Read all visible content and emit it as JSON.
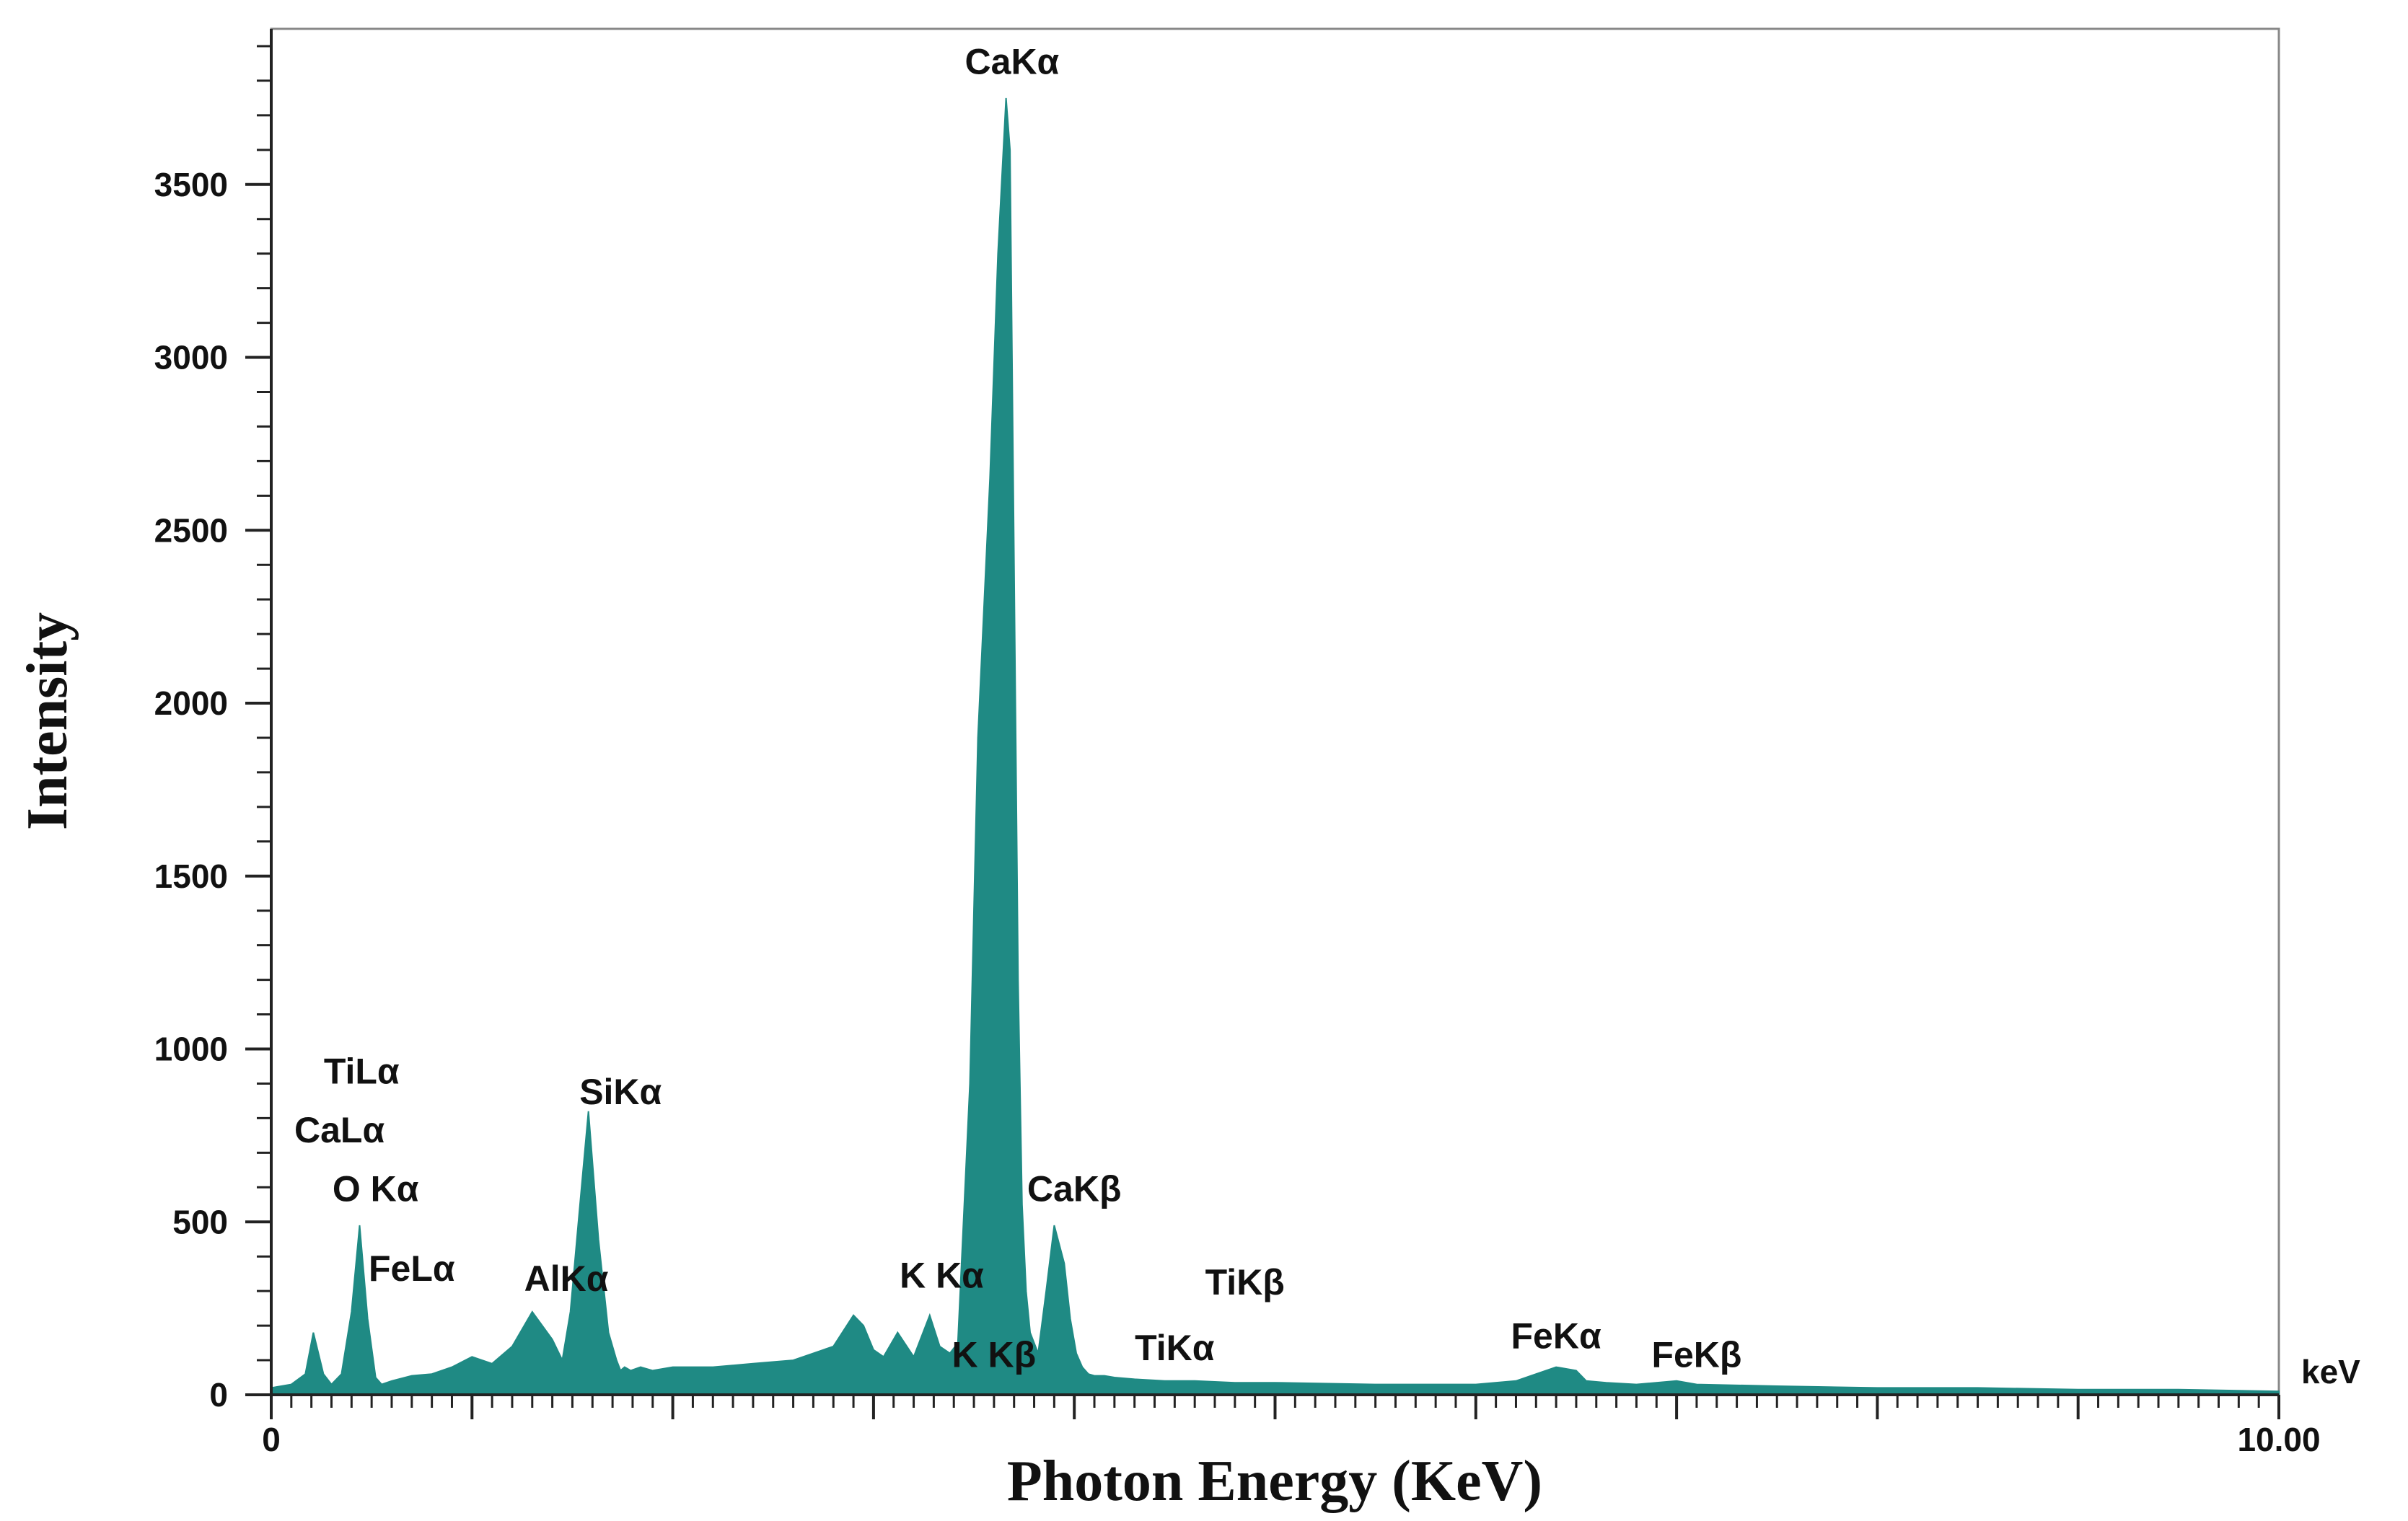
{
  "chart_data": {
    "type": "area",
    "title": "",
    "xlabel": "Photon Energy (KeV)",
    "ylabel": "Intensity",
    "x_unit": "keV",
    "xlim": [
      0,
      10.0
    ],
    "ylim": [
      0,
      3950
    ],
    "x_tick_labels": [
      "0",
      "10.00"
    ],
    "y_ticks": [
      0,
      500,
      1000,
      1500,
      2000,
      2500,
      3000,
      3500
    ],
    "y_tick_labels": [
      "0",
      "500",
      "1000",
      "1500",
      "2000",
      "2500",
      "3000",
      "3500"
    ],
    "grid": false,
    "legend": "none",
    "color": "#1f8a84",
    "series": [
      {
        "x": [
          0.0,
          0.1,
          0.17,
          0.21,
          0.26,
          0.3,
          0.35,
          0.4,
          0.44,
          0.48,
          0.52,
          0.55,
          0.6,
          0.7,
          0.8,
          0.9,
          1.0,
          1.1,
          1.2,
          1.3,
          1.4,
          1.45,
          1.49,
          1.53,
          1.58,
          1.63,
          1.68,
          1.72,
          1.74,
          1.76,
          1.79,
          1.84,
          1.9,
          2.0,
          2.2,
          2.4,
          2.6,
          2.8,
          2.9,
          2.95,
          3.0,
          3.05,
          3.12,
          3.2,
          3.28,
          3.33,
          3.38,
          3.42,
          3.48,
          3.52,
          3.58,
          3.62,
          3.66,
          3.68,
          3.7,
          3.72,
          3.74,
          3.76,
          3.78,
          3.82,
          3.86,
          3.9,
          3.95,
          3.98,
          4.01,
          4.04,
          4.07,
          4.1,
          4.15,
          4.2,
          4.3,
          4.45,
          4.6,
          4.8,
          5.0,
          5.5,
          6.0,
          6.2,
          6.4,
          6.5,
          6.55,
          6.65,
          6.8,
          7.0,
          7.1,
          7.5,
          8.0,
          8.5,
          9.0,
          9.5,
          10.0
        ],
        "y": [
          20,
          30,
          60,
          180,
          60,
          30,
          60,
          240,
          490,
          220,
          50,
          30,
          40,
          55,
          60,
          80,
          110,
          90,
          140,
          240,
          160,
          100,
          240,
          500,
          820,
          450,
          180,
          100,
          70,
          80,
          70,
          80,
          70,
          80,
          80,
          90,
          100,
          140,
          230,
          200,
          130,
          110,
          180,
          110,
          230,
          140,
          120,
          150,
          900,
          1900,
          2650,
          3300,
          3750,
          3600,
          2400,
          1200,
          550,
          300,
          180,
          120,
          300,
          490,
          380,
          220,
          120,
          80,
          60,
          55,
          55,
          50,
          45,
          40,
          40,
          35,
          35,
          30,
          30,
          40,
          80,
          70,
          40,
          35,
          30,
          40,
          30,
          25,
          20,
          20,
          15,
          15,
          10
        ]
      }
    ],
    "annotations": [
      {
        "text": "CaKα",
        "x": 3.69,
        "y": 3820
      },
      {
        "text": "TiLα",
        "x": 0.45,
        "y": 900
      },
      {
        "text": "CaLα",
        "x": 0.34,
        "y": 730
      },
      {
        "text": "O Kα",
        "x": 0.52,
        "y": 560
      },
      {
        "text": "FeLα",
        "x": 0.7,
        "y": 330
      },
      {
        "text": "SiKα",
        "x": 1.74,
        "y": 840
      },
      {
        "text": "AlKα",
        "x": 1.47,
        "y": 300
      },
      {
        "text": "K Kα",
        "x": 3.34,
        "y": 310
      },
      {
        "text": "K Kβ",
        "x": 3.6,
        "y": 80
      },
      {
        "text": "CaKβ",
        "x": 4.0,
        "y": 560
      },
      {
        "text": "TiKβ",
        "x": 4.85,
        "y": 290
      },
      {
        "text": "TiKα",
        "x": 4.5,
        "y": 100
      },
      {
        "text": "FeKα",
        "x": 6.4,
        "y": 135
      },
      {
        "text": "FeKβ",
        "x": 7.1,
        "y": 80
      }
    ]
  }
}
